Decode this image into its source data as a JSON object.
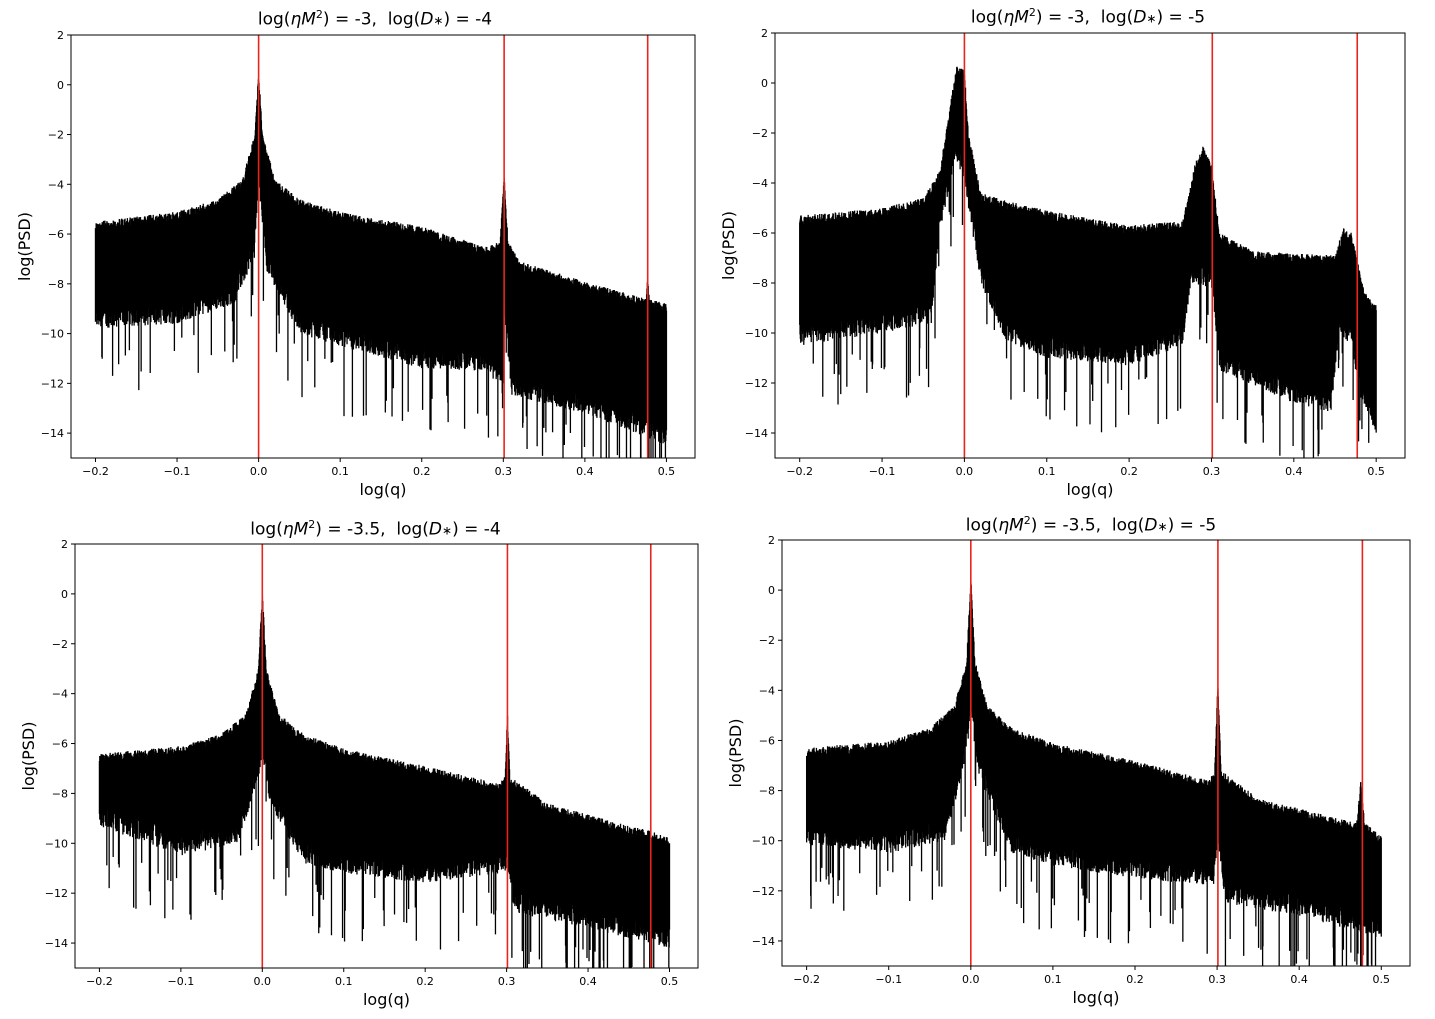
{
  "chart_data": [
    {
      "type": "line",
      "title_parts": [
        "log(",
        "ηM",
        "2",
        ") = -3,  log(",
        "D",
        "∗",
        ") = -4"
      ],
      "xlabel": "log(q)",
      "ylabel": "log(PSD)",
      "xlim": [
        -0.23,
        0.535
      ],
      "ylim": [
        -15,
        2
      ],
      "xticks": [
        -0.2,
        -0.1,
        0.0,
        0.1,
        0.2,
        0.3,
        0.4,
        0.5
      ],
      "xtick_labels": [
        "−0.2",
        "−0.1",
        "0.0",
        "0.1",
        "0.2",
        "0.3",
        "0.4",
        "0.5"
      ],
      "yticks": [
        2,
        0,
        -2,
        -4,
        -6,
        -8,
        -10,
        -12,
        -14
      ],
      "ytick_labels": [
        "2",
        "0",
        "−2",
        "−4",
        "−6",
        "−8",
        "−10",
        "−12",
        "−14"
      ],
      "grid": false,
      "vlines": {
        "color": "#e8251c",
        "x": [
          0.0,
          0.301,
          0.477
        ]
      },
      "series": [
        {
          "color": "#000000",
          "envelope_upper": [
            [
              -0.2,
              -5.5
            ],
            [
              -0.1,
              -5.1
            ],
            [
              -0.05,
              -4.6
            ],
            [
              -0.02,
              -3.8
            ],
            [
              -0.005,
              -2.0
            ],
            [
              0.0,
              0.5
            ],
            [
              0.005,
              -2.0
            ],
            [
              0.02,
              -3.8
            ],
            [
              0.05,
              -4.6
            ],
            [
              0.1,
              -5.1
            ],
            [
              0.2,
              -5.7
            ],
            [
              0.28,
              -6.5
            ],
            [
              0.296,
              -6.3
            ],
            [
              0.301,
              -3.6
            ],
            [
              0.306,
              -6.3
            ],
            [
              0.32,
              -7.1
            ],
            [
              0.4,
              -7.9
            ],
            [
              0.475,
              -8.6
            ],
            [
              0.477,
              -7.5
            ],
            [
              0.479,
              -8.6
            ],
            [
              0.5,
              -8.8
            ]
          ],
          "envelope_lower": [
            [
              -0.2,
              -9.8
            ],
            [
              -0.1,
              -9.6
            ],
            [
              -0.03,
              -8.8
            ],
            [
              -0.005,
              -7.0
            ],
            [
              0.0,
              -4.0
            ],
            [
              0.01,
              -7.5
            ],
            [
              0.05,
              -10.0
            ],
            [
              0.1,
              -10.5
            ],
            [
              0.2,
              -11.4
            ],
            [
              0.28,
              -11.5
            ],
            [
              0.298,
              -12.3
            ],
            [
              0.301,
              -9.0
            ],
            [
              0.31,
              -12.5
            ],
            [
              0.4,
              -13.2
            ],
            [
              0.5,
              -14.5
            ]
          ]
        }
      ]
    },
    {
      "type": "line",
      "title_parts": [
        "log(",
        "ηM",
        "2",
        ") = -3,  log(",
        "D",
        "∗",
        ") = -5"
      ],
      "xlabel": "log(q)",
      "ylabel": "log(PSD)",
      "xlim": [
        -0.23,
        0.535
      ],
      "ylim": [
        -15,
        2
      ],
      "xticks": [
        -0.2,
        -0.1,
        0.0,
        0.1,
        0.2,
        0.3,
        0.4,
        0.5
      ],
      "xtick_labels": [
        "−0.2",
        "−0.1",
        "0.0",
        "0.1",
        "0.2",
        "0.3",
        "0.4",
        "0.5"
      ],
      "yticks": [
        2,
        0,
        -2,
        -4,
        -6,
        -8,
        -10,
        -12,
        -14
      ],
      "ytick_labels": [
        "2",
        "0",
        "−2",
        "−4",
        "−6",
        "−8",
        "−10",
        "−12",
        "−14"
      ],
      "grid": false,
      "vlines": {
        "color": "#e8251c",
        "x": [
          0.0,
          0.301,
          0.477
        ]
      },
      "series": [
        {
          "color": "#000000",
          "envelope_upper": [
            [
              -0.2,
              -5.3
            ],
            [
              -0.1,
              -5.0
            ],
            [
              -0.05,
              -4.6
            ],
            [
              -0.03,
              -3.5
            ],
            [
              -0.02,
              -1.5
            ],
            [
              -0.01,
              0.7
            ],
            [
              0.0,
              0.5
            ],
            [
              0.005,
              -2.0
            ],
            [
              0.02,
              -4.4
            ],
            [
              0.05,
              -4.7
            ],
            [
              0.1,
              -5.1
            ],
            [
              0.2,
              -5.7
            ],
            [
              0.265,
              -5.5
            ],
            [
              0.28,
              -3.2
            ],
            [
              0.29,
              -2.5
            ],
            [
              0.3,
              -3.3
            ],
            [
              0.31,
              -6.0
            ],
            [
              0.35,
              -6.7
            ],
            [
              0.45,
              -6.9
            ],
            [
              0.46,
              -5.8
            ],
            [
              0.47,
              -6.0
            ],
            [
              0.485,
              -8.3
            ],
            [
              0.5,
              -8.9
            ]
          ],
          "envelope_lower": [
            [
              -0.2,
              -10.5
            ],
            [
              -0.1,
              -10.0
            ],
            [
              -0.04,
              -9.6
            ],
            [
              -0.03,
              -6.0
            ],
            [
              -0.01,
              -3.0
            ],
            [
              0.0,
              -4.0
            ],
            [
              0.02,
              -8.0
            ],
            [
              0.05,
              -10.3
            ],
            [
              0.1,
              -11.0
            ],
            [
              0.2,
              -11.3
            ],
            [
              0.265,
              -10.5
            ],
            [
              0.275,
              -8.0
            ],
            [
              0.3,
              -8.2
            ],
            [
              0.31,
              -11.5
            ],
            [
              0.4,
              -12.8
            ],
            [
              0.445,
              -13.2
            ],
            [
              0.455,
              -10.0
            ],
            [
              0.47,
              -10.5
            ],
            [
              0.48,
              -12.5
            ],
            [
              0.5,
              -14.0
            ]
          ]
        }
      ]
    },
    {
      "type": "line",
      "title_parts": [
        "log(",
        "ηM",
        "2",
        ") = -3.5,  log(",
        "D",
        "∗",
        ") = -4"
      ],
      "xlabel": "log(q)",
      "ylabel": "log(PSD)",
      "xlim": [
        -0.23,
        0.535
      ],
      "ylim": [
        -15,
        2
      ],
      "xticks": [
        -0.2,
        -0.1,
        0.0,
        0.1,
        0.2,
        0.3,
        0.4,
        0.5
      ],
      "xtick_labels": [
        "−0.2",
        "−0.1",
        "0.0",
        "0.1",
        "0.2",
        "0.3",
        "0.4",
        "0.5"
      ],
      "yticks": [
        2,
        0,
        -2,
        -4,
        -6,
        -8,
        -10,
        -12,
        -14
      ],
      "ytick_labels": [
        "2",
        "0",
        "−2",
        "−4",
        "−6",
        "−8",
        "−10",
        "−12",
        "−14"
      ],
      "grid": false,
      "vlines": {
        "color": "#e8251c",
        "x": [
          0.0,
          0.301,
          0.477
        ]
      },
      "series": [
        {
          "color": "#000000",
          "envelope_upper": [
            [
              -0.2,
              -6.4
            ],
            [
              -0.1,
              -6.1
            ],
            [
              -0.05,
              -5.6
            ],
            [
              -0.02,
              -4.8
            ],
            [
              -0.005,
              -3.0
            ],
            [
              0.0,
              0.2
            ],
            [
              0.005,
              -3.0
            ],
            [
              0.02,
              -4.8
            ],
            [
              0.05,
              -5.6
            ],
            [
              0.1,
              -6.2
            ],
            [
              0.2,
              -6.9
            ],
            [
              0.29,
              -7.6
            ],
            [
              0.298,
              -7.3
            ],
            [
              0.301,
              -4.7
            ],
            [
              0.304,
              -7.3
            ],
            [
              0.35,
              -8.4
            ],
            [
              0.45,
              -9.3
            ],
            [
              0.477,
              -9.5
            ],
            [
              0.5,
              -9.8
            ]
          ],
          "envelope_lower": [
            [
              -0.2,
              -9.3
            ],
            [
              -0.1,
              -10.5
            ],
            [
              -0.03,
              -10.0
            ],
            [
              -0.005,
              -7.5
            ],
            [
              0.0,
              -6.5
            ],
            [
              0.01,
              -8.5
            ],
            [
              0.05,
              -10.8
            ],
            [
              0.1,
              -11.2
            ],
            [
              0.2,
              -11.6
            ],
            [
              0.295,
              -11.2
            ],
            [
              0.301,
              -11.0
            ],
            [
              0.31,
              -12.8
            ],
            [
              0.4,
              -13.4
            ],
            [
              0.5,
              -14.2
            ]
          ]
        }
      ]
    },
    {
      "type": "line",
      "title_parts": [
        "log(",
        "ηM",
        "2",
        ") = -3.5,  log(",
        "D",
        "∗",
        ") = -5"
      ],
      "xlabel": "log(q)",
      "ylabel": "log(PSD)",
      "xlim": [
        -0.23,
        0.535
      ],
      "ylim": [
        -15,
        2
      ],
      "xticks": [
        -0.2,
        -0.1,
        0.0,
        0.1,
        0.2,
        0.3,
        0.4,
        0.5
      ],
      "xtick_labels": [
        "−0.2",
        "−0.1",
        "0.0",
        "0.1",
        "0.2",
        "0.3",
        "0.4",
        "0.5"
      ],
      "yticks": [
        2,
        0,
        -2,
        -4,
        -6,
        -8,
        -10,
        -12,
        -14
      ],
      "ytick_labels": [
        "2",
        "0",
        "−2",
        "−4",
        "−6",
        "−8",
        "−10",
        "−12",
        "−14"
      ],
      "grid": false,
      "vlines": {
        "color": "#e8251c",
        "x": [
          0.0,
          0.301,
          0.477
        ]
      },
      "series": [
        {
          "color": "#000000",
          "envelope_upper": [
            [
              -0.2,
              -6.3
            ],
            [
              -0.1,
              -6.0
            ],
            [
              -0.05,
              -5.5
            ],
            [
              -0.02,
              -4.6
            ],
            [
              -0.005,
              -2.8
            ],
            [
              0.0,
              0.6
            ],
            [
              0.005,
              -2.8
            ],
            [
              0.02,
              -4.6
            ],
            [
              0.05,
              -5.5
            ],
            [
              0.1,
              -6.1
            ],
            [
              0.2,
              -6.8
            ],
            [
              0.29,
              -7.6
            ],
            [
              0.297,
              -7.2
            ],
            [
              0.301,
              -3.6
            ],
            [
              0.305,
              -7.2
            ],
            [
              0.35,
              -8.3
            ],
            [
              0.47,
              -9.3
            ],
            [
              0.475,
              -7.6
            ],
            [
              0.48,
              -9.3
            ],
            [
              0.5,
              -9.8
            ]
          ],
          "envelope_lower": [
            [
              -0.2,
              -10.2
            ],
            [
              -0.1,
              -10.5
            ],
            [
              -0.03,
              -10.0
            ],
            [
              -0.005,
              -6.5
            ],
            [
              0.0,
              -5.0
            ],
            [
              0.01,
              -7.5
            ],
            [
              0.05,
              -10.5
            ],
            [
              0.1,
              -11.0
            ],
            [
              0.2,
              -11.5
            ],
            [
              0.296,
              -11.8
            ],
            [
              0.301,
              -10.0
            ],
            [
              0.31,
              -12.5
            ],
            [
              0.4,
              -13.0
            ],
            [
              0.5,
              -13.9
            ]
          ]
        }
      ]
    }
  ]
}
